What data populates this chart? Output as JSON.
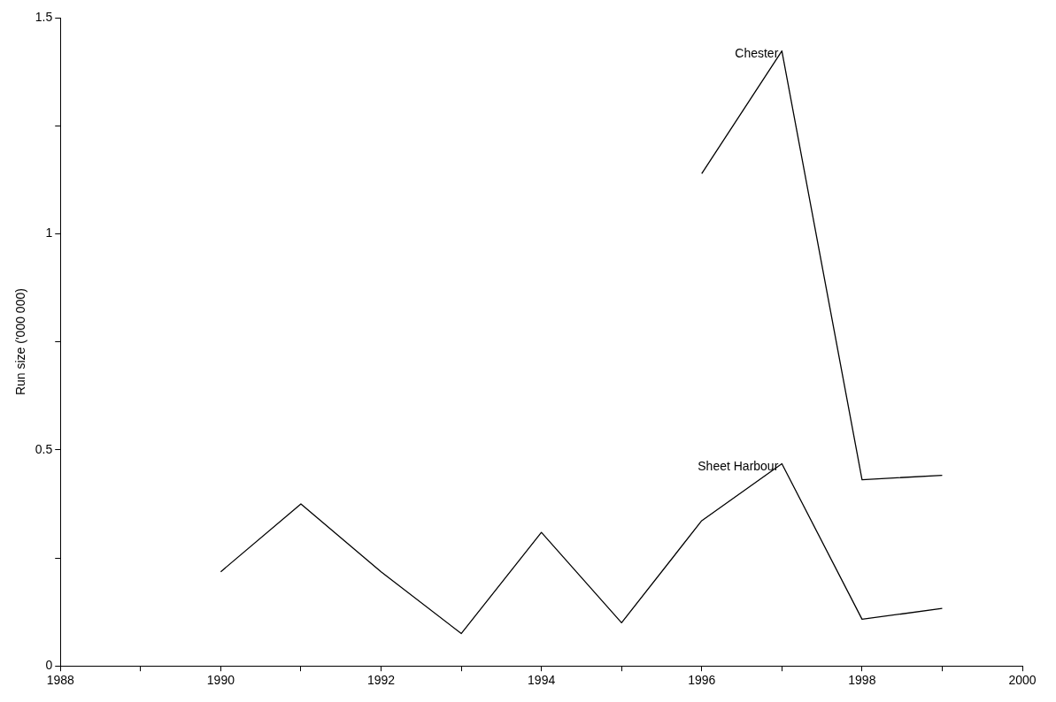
{
  "chart_data": {
    "type": "line",
    "ylabel": "Run size ('000 000)",
    "x": [
      1990,
      1991,
      1992,
      1993,
      1994,
      1995,
      1996,
      1997,
      1998,
      1999
    ],
    "series": [
      {
        "name": "Sheet Harbour",
        "color": "#000000",
        "values": [
          0.218,
          0.375,
          0.218,
          0.075,
          0.309,
          0.1,
          0.336,
          0.468,
          0.108,
          0.133
        ]
      },
      {
        "name": "Chester",
        "color": "#000000",
        "values": [
          null,
          null,
          null,
          null,
          null,
          null,
          1.139,
          1.423,
          0.431,
          0.441
        ]
      }
    ],
    "xlim": [
      1988,
      2000
    ],
    "xticks": [
      1988,
      {
        "value": 1989,
        "label": null
      },
      1990,
      {
        "value": 1991,
        "label": null
      },
      1992,
      {
        "value": 1993,
        "label": null
      },
      1994,
      {
        "value": 1995,
        "label": null
      },
      1996,
      {
        "value": 1997,
        "label": null
      },
      1998,
      {
        "value": 1999,
        "label": null
      },
      2000
    ],
    "ylim": [
      0,
      1.5
    ],
    "yticks": [
      0,
      {
        "value": 0.25,
        "label": null
      },
      0.5,
      {
        "value": 0.75,
        "label": null
      },
      1,
      {
        "value": 1.25,
        "label": null
      },
      1.5
    ],
    "grid": false,
    "legend": false,
    "marker": "none",
    "line_style": "solid"
  }
}
